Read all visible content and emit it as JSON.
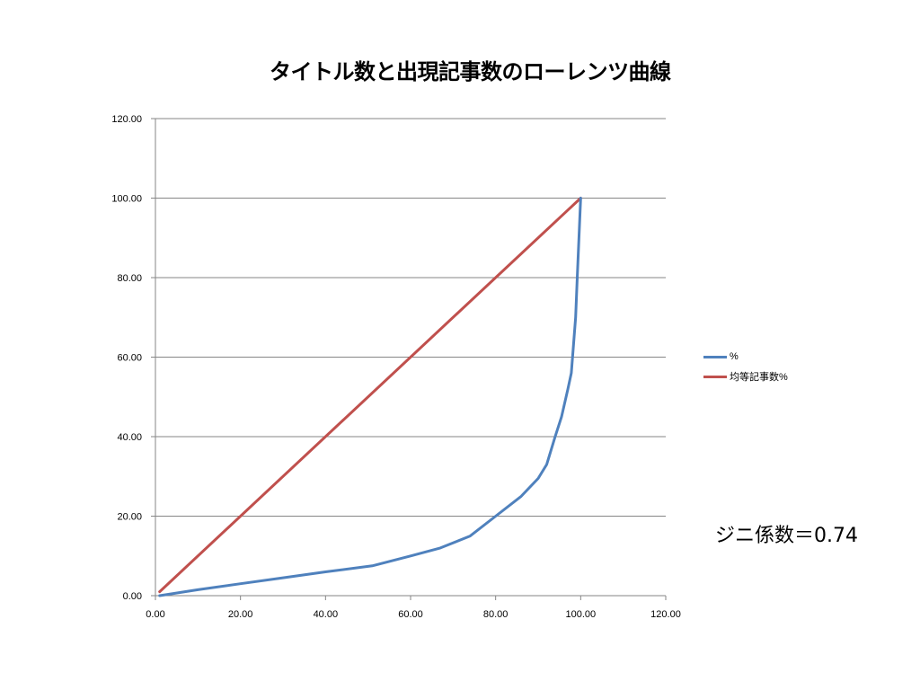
{
  "chart_data": {
    "type": "line",
    "title": "タイトル数と出現記事数のローレンツ曲線",
    "xlim": [
      0,
      120
    ],
    "ylim": [
      0,
      120
    ],
    "x_ticks": [
      "0.00",
      "20.00",
      "40.00",
      "60.00",
      "80.00",
      "100.00",
      "120.00"
    ],
    "y_ticks": [
      "0.00",
      "20.00",
      "40.00",
      "60.00",
      "80.00",
      "100.00",
      "120.00"
    ],
    "grid": "horizontal",
    "legend_position": "right",
    "series": [
      {
        "name": "%",
        "color": "#4F81BD",
        "points": [
          [
            1,
            0
          ],
          [
            10,
            1.5
          ],
          [
            20,
            3
          ],
          [
            30,
            4.5
          ],
          [
            40,
            6
          ],
          [
            51,
            7.5
          ],
          [
            60,
            10
          ],
          [
            67,
            12
          ],
          [
            74,
            15
          ],
          [
            80,
            20
          ],
          [
            86,
            25
          ],
          [
            90,
            29.5
          ],
          [
            92,
            33
          ],
          [
            94,
            40
          ],
          [
            95.5,
            45
          ],
          [
            97,
            52
          ],
          [
            97.8,
            56
          ],
          [
            98.3,
            63
          ],
          [
            98.8,
            70
          ],
          [
            99.2,
            80
          ],
          [
            99.6,
            90
          ],
          [
            100,
            100
          ]
        ]
      },
      {
        "name": "均等記事数%",
        "color": "#C0504D",
        "points": [
          [
            1,
            1
          ],
          [
            100,
            100
          ]
        ]
      }
    ],
    "annotation": "ジニ係数＝0.74"
  }
}
